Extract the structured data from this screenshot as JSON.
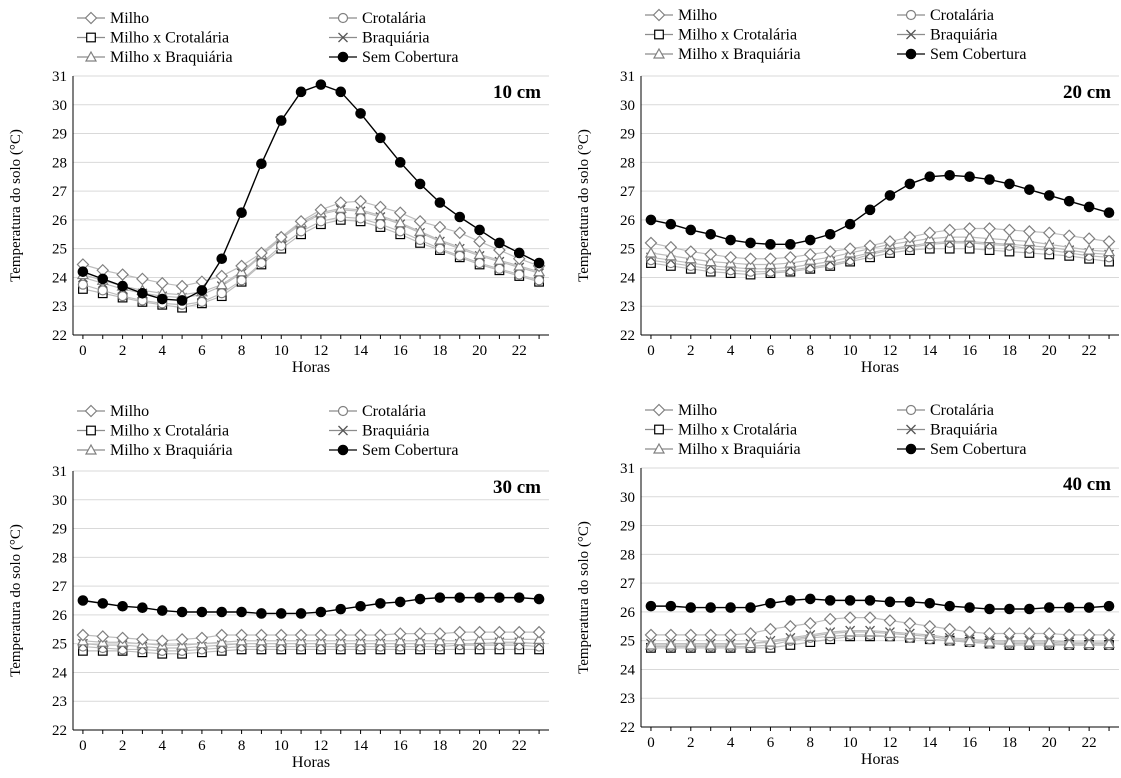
{
  "figure": {
    "xlabel": "Horas",
    "ylabel": "Temperatura do solo (°C)",
    "series_style": {
      "Milho": {
        "marker": "diamond",
        "color": "#808080",
        "line": "#bdbdbd"
      },
      "Crotalária": {
        "marker": "circle",
        "color": "#808080",
        "line": "#bdbdbd"
      },
      "Milho x Crotalária": {
        "marker": "square",
        "color": "#000000",
        "line": "#bdbdbd"
      },
      "Braquiária": {
        "marker": "x",
        "color": "#555555",
        "line": "#bdbdbd"
      },
      "Milho x Braquiária": {
        "marker": "triangle",
        "color": "#808080",
        "line": "#bdbdbd"
      },
      "Sem Cobertura": {
        "marker": "filled-circle",
        "color": "#000000",
        "line": "#000000"
      }
    }
  },
  "chart_data": [
    {
      "type": "line",
      "annotation": "10 cm",
      "xlabel": "Horas",
      "ylabel": "Temperatura do solo (°C)",
      "x": [
        0,
        1,
        2,
        3,
        4,
        5,
        6,
        7,
        8,
        9,
        10,
        11,
        12,
        13,
        14,
        15,
        16,
        17,
        18,
        19,
        20,
        21,
        22,
        23
      ],
      "xticks": [
        0,
        2,
        4,
        6,
        8,
        10,
        12,
        14,
        16,
        18,
        20,
        22
      ],
      "ylim": [
        22,
        31
      ],
      "yticks": [
        22,
        23,
        24,
        25,
        26,
        27,
        28,
        29,
        30,
        31
      ],
      "grid": true,
      "legend_position": "top",
      "series": [
        {
          "name": "Milho",
          "values": [
            24.45,
            24.25,
            24.1,
            23.95,
            23.8,
            23.7,
            23.85,
            24.05,
            24.4,
            24.85,
            25.4,
            25.95,
            26.35,
            26.6,
            26.65,
            26.45,
            26.25,
            25.95,
            25.75,
            25.55,
            25.25,
            24.95,
            24.65,
            24.4
          ]
        },
        {
          "name": "Crotalária",
          "values": [
            23.75,
            23.55,
            23.35,
            23.2,
            23.1,
            23.05,
            23.15,
            23.45,
            23.9,
            24.5,
            25.1,
            25.6,
            25.95,
            26.1,
            26.05,
            25.85,
            25.6,
            25.3,
            25.0,
            24.75,
            24.5,
            24.3,
            24.1,
            23.9
          ]
        },
        {
          "name": "Milho x Crotalária",
          "values": [
            23.6,
            23.45,
            23.3,
            23.15,
            23.05,
            22.95,
            23.1,
            23.35,
            23.85,
            24.45,
            25.0,
            25.5,
            25.85,
            26.0,
            25.95,
            25.75,
            25.5,
            25.2,
            24.95,
            24.7,
            24.45,
            24.25,
            24.05,
            23.85
          ]
        },
        {
          "name": "Braquiária",
          "values": [
            24.0,
            23.8,
            23.6,
            23.45,
            23.35,
            23.3,
            23.4,
            23.7,
            24.15,
            24.75,
            25.35,
            25.85,
            26.2,
            26.35,
            26.3,
            26.1,
            25.85,
            25.55,
            25.25,
            25.0,
            24.75,
            24.55,
            24.35,
            24.15
          ]
        },
        {
          "name": "Milho x Braquiária",
          "values": [
            24.1,
            23.9,
            23.7,
            23.55,
            23.45,
            23.4,
            23.5,
            23.75,
            24.2,
            24.8,
            25.4,
            25.9,
            26.25,
            26.4,
            26.35,
            26.15,
            25.9,
            25.6,
            25.3,
            25.05,
            24.8,
            24.6,
            24.4,
            24.2
          ]
        },
        {
          "name": "Sem Cobertura",
          "values": [
            24.2,
            23.95,
            23.7,
            23.45,
            23.25,
            23.2,
            23.55,
            24.65,
            26.25,
            27.95,
            29.45,
            30.45,
            30.7,
            30.45,
            29.7,
            28.85,
            28.0,
            27.25,
            26.6,
            26.1,
            25.65,
            25.2,
            24.85,
            24.5
          ]
        }
      ]
    },
    {
      "type": "line",
      "annotation": "20 cm",
      "xlabel": "Horas",
      "ylabel": "Temperatura do solo (°C)",
      "x": [
        0,
        1,
        2,
        3,
        4,
        5,
        6,
        7,
        8,
        9,
        10,
        11,
        12,
        13,
        14,
        15,
        16,
        17,
        18,
        19,
        20,
        21,
        22,
        23
      ],
      "xticks": [
        0,
        2,
        4,
        6,
        8,
        10,
        12,
        14,
        16,
        18,
        20,
        22
      ],
      "ylim": [
        22,
        31
      ],
      "yticks": [
        22,
        23,
        24,
        25,
        26,
        27,
        28,
        29,
        30,
        31
      ],
      "grid": true,
      "legend_position": "top",
      "series": [
        {
          "name": "Milho",
          "values": [
            25.2,
            25.05,
            24.9,
            24.8,
            24.7,
            24.65,
            24.65,
            24.7,
            24.8,
            24.9,
            25.0,
            25.1,
            25.25,
            25.4,
            25.55,
            25.65,
            25.7,
            25.7,
            25.65,
            25.6,
            25.55,
            25.45,
            25.35,
            25.25
          ]
        },
        {
          "name": "Crotalária",
          "values": [
            24.6,
            24.5,
            24.4,
            24.3,
            24.25,
            24.2,
            24.2,
            24.25,
            24.35,
            24.45,
            24.6,
            24.8,
            24.95,
            25.05,
            25.15,
            25.2,
            25.2,
            25.15,
            25.1,
            25.0,
            24.95,
            24.85,
            24.75,
            24.7
          ]
        },
        {
          "name": "Milho x Crotalária",
          "values": [
            24.5,
            24.4,
            24.3,
            24.2,
            24.15,
            24.1,
            24.15,
            24.2,
            24.3,
            24.4,
            24.55,
            24.7,
            24.85,
            24.95,
            25.0,
            25.0,
            25.0,
            24.95,
            24.9,
            24.85,
            24.8,
            24.75,
            24.65,
            24.55
          ]
        },
        {
          "name": "Braquiária",
          "values": [
            24.7,
            24.6,
            24.5,
            24.4,
            24.35,
            24.3,
            24.3,
            24.35,
            24.45,
            24.55,
            24.7,
            24.85,
            25.0,
            25.1,
            25.2,
            25.25,
            25.25,
            25.2,
            25.15,
            25.1,
            25.05,
            24.95,
            24.85,
            24.8
          ]
        },
        {
          "name": "Milho x Braquiária",
          "values": [
            24.85,
            24.75,
            24.65,
            24.55,
            24.5,
            24.45,
            24.45,
            24.5,
            24.6,
            24.7,
            24.85,
            25.0,
            25.15,
            25.25,
            25.35,
            25.4,
            25.4,
            25.35,
            25.3,
            25.25,
            25.15,
            25.05,
            24.95,
            24.9
          ]
        },
        {
          "name": "Sem Cobertura",
          "values": [
            26.0,
            25.85,
            25.65,
            25.5,
            25.3,
            25.2,
            25.15,
            25.15,
            25.3,
            25.5,
            25.85,
            26.35,
            26.85,
            27.25,
            27.5,
            27.55,
            27.5,
            27.4,
            27.25,
            27.05,
            26.85,
            26.65,
            26.45,
            26.25
          ]
        }
      ]
    },
    {
      "type": "line",
      "annotation": "30 cm",
      "xlabel": "Horas",
      "ylabel": "Temperatura do solo (°C)",
      "x": [
        0,
        1,
        2,
        3,
        4,
        5,
        6,
        7,
        8,
        9,
        10,
        11,
        12,
        13,
        14,
        15,
        16,
        17,
        18,
        19,
        20,
        21,
        22,
        23
      ],
      "xticks": [
        0,
        2,
        4,
        6,
        8,
        10,
        12,
        14,
        16,
        18,
        20,
        22
      ],
      "ylim": [
        22,
        31
      ],
      "yticks": [
        22,
        23,
        24,
        25,
        26,
        27,
        28,
        29,
        30,
        31
      ],
      "grid": true,
      "legend_position": "top",
      "series": [
        {
          "name": "Milho",
          "values": [
            25.3,
            25.25,
            25.2,
            25.15,
            25.1,
            25.15,
            25.2,
            25.3,
            25.3,
            25.3,
            25.3,
            25.3,
            25.3,
            25.3,
            25.3,
            25.3,
            25.35,
            25.35,
            25.35,
            25.4,
            25.4,
            25.4,
            25.4,
            25.4
          ]
        },
        {
          "name": "Crotalária",
          "values": [
            24.9,
            24.85,
            24.8,
            24.8,
            24.75,
            24.75,
            24.8,
            24.85,
            24.9,
            24.9,
            24.9,
            24.9,
            24.9,
            24.9,
            24.9,
            24.9,
            24.9,
            24.9,
            24.9,
            24.95,
            24.95,
            24.95,
            24.95,
            24.9
          ]
        },
        {
          "name": "Milho x Crotalária",
          "values": [
            24.75,
            24.75,
            24.75,
            24.7,
            24.65,
            24.65,
            24.7,
            24.75,
            24.8,
            24.8,
            24.8,
            24.8,
            24.8,
            24.8,
            24.8,
            24.8,
            24.8,
            24.8,
            24.8,
            24.8,
            24.8,
            24.8,
            24.8,
            24.8
          ]
        },
        {
          "name": "Braquiária",
          "values": [
            25.0,
            24.95,
            24.95,
            24.9,
            24.85,
            24.85,
            24.9,
            24.95,
            25.0,
            25.0,
            25.0,
            25.0,
            25.0,
            25.0,
            25.0,
            25.0,
            25.0,
            25.0,
            25.0,
            25.0,
            25.0,
            25.05,
            25.05,
            25.0
          ]
        },
        {
          "name": "Milho x Braquiária",
          "values": [
            25.1,
            25.05,
            25.05,
            25.0,
            24.95,
            24.95,
            25.0,
            25.05,
            25.1,
            25.1,
            25.1,
            25.1,
            25.1,
            25.1,
            25.1,
            25.1,
            25.1,
            25.1,
            25.1,
            25.1,
            25.15,
            25.15,
            25.15,
            25.15
          ]
        },
        {
          "name": "Sem Cobertura",
          "values": [
            26.5,
            26.4,
            26.3,
            26.25,
            26.15,
            26.1,
            26.1,
            26.1,
            26.1,
            26.05,
            26.05,
            26.05,
            26.1,
            26.2,
            26.3,
            26.4,
            26.45,
            26.55,
            26.6,
            26.6,
            26.6,
            26.6,
            26.6,
            26.55
          ]
        }
      ]
    },
    {
      "type": "line",
      "annotation": "40 cm",
      "xlabel": "Horas",
      "ylabel": "Temperatura do solo (°C)",
      "x": [
        0,
        1,
        2,
        3,
        4,
        5,
        6,
        7,
        8,
        9,
        10,
        11,
        12,
        13,
        14,
        15,
        16,
        17,
        18,
        19,
        20,
        21,
        22,
        23
      ],
      "xticks": [
        0,
        2,
        4,
        6,
        8,
        10,
        12,
        14,
        16,
        18,
        20,
        22
      ],
      "ylim": [
        22,
        31
      ],
      "yticks": [
        22,
        23,
        24,
        25,
        26,
        27,
        28,
        29,
        30,
        31
      ],
      "grid": true,
      "legend_position": "top",
      "series": [
        {
          "name": "Milho",
          "values": [
            25.2,
            25.2,
            25.2,
            25.2,
            25.2,
            25.25,
            25.4,
            25.5,
            25.6,
            25.75,
            25.8,
            25.8,
            25.7,
            25.6,
            25.5,
            25.4,
            25.3,
            25.25,
            25.25,
            25.25,
            25.25,
            25.2,
            25.2,
            25.2
          ]
        },
        {
          "name": "Crotalária",
          "values": [
            24.8,
            24.8,
            24.8,
            24.8,
            24.8,
            24.8,
            24.85,
            25.0,
            25.1,
            25.15,
            25.2,
            25.2,
            25.15,
            25.1,
            25.05,
            25.0,
            24.95,
            24.9,
            24.9,
            24.9,
            24.9,
            24.85,
            24.85,
            24.85
          ]
        },
        {
          "name": "Milho x Crotalária",
          "values": [
            24.75,
            24.75,
            24.75,
            24.75,
            24.75,
            24.75,
            24.75,
            24.85,
            24.95,
            25.05,
            25.15,
            25.15,
            25.15,
            25.1,
            25.05,
            25.0,
            24.95,
            24.9,
            24.85,
            24.85,
            24.85,
            24.85,
            24.85,
            24.85
          ]
        },
        {
          "name": "Braquiária",
          "values": [
            24.9,
            24.9,
            24.9,
            24.9,
            24.9,
            24.9,
            25.0,
            25.1,
            25.2,
            25.3,
            25.35,
            25.35,
            25.3,
            25.25,
            25.2,
            25.1,
            25.05,
            25.0,
            25.0,
            25.0,
            25.0,
            24.95,
            24.95,
            24.95
          ]
        },
        {
          "name": "Milho x Braquiária",
          "values": [
            24.85,
            24.85,
            24.85,
            24.85,
            24.85,
            24.9,
            24.95,
            25.05,
            25.15,
            25.25,
            25.3,
            25.3,
            25.25,
            25.2,
            25.15,
            25.05,
            25.0,
            24.95,
            24.95,
            24.95,
            24.95,
            24.9,
            24.9,
            24.9
          ]
        },
        {
          "name": "Sem Cobertura",
          "values": [
            26.2,
            26.2,
            26.15,
            26.15,
            26.15,
            26.15,
            26.3,
            26.4,
            26.45,
            26.4,
            26.4,
            26.4,
            26.35,
            26.35,
            26.3,
            26.2,
            26.15,
            26.1,
            26.1,
            26.1,
            26.15,
            26.15,
            26.15,
            26.2
          ]
        }
      ]
    }
  ]
}
